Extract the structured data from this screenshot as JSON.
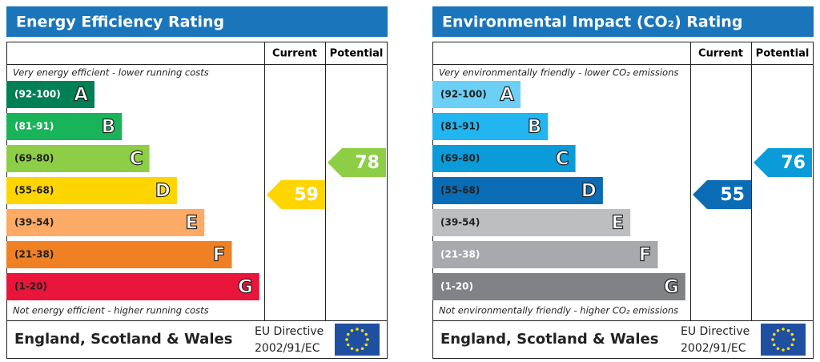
{
  "panels": [
    {
      "title": "Energy Efficiency Rating",
      "columns": [
        "Current",
        "Potential"
      ],
      "top_note": "Very energy efficient - lower running costs",
      "bottom_note": "Not energy efficient - higher running costs",
      "bands": [
        {
          "range": "(92-100)",
          "letter": "A",
          "color": "#008054",
          "text_color": "#ffffff"
        },
        {
          "range": "(81-91)",
          "letter": "B",
          "color": "#19b459",
          "text_color": "#ffffff"
        },
        {
          "range": "(69-80)",
          "letter": "C",
          "color": "#8dce46",
          "text_color": "#222222"
        },
        {
          "range": "(55-68)",
          "letter": "D",
          "color": "#ffd500",
          "text_color": "#222222"
        },
        {
          "range": "(39-54)",
          "letter": "E",
          "color": "#fcaa65",
          "text_color": "#222222"
        },
        {
          "range": "(21-38)",
          "letter": "F",
          "color": "#ef8023",
          "text_color": "#222222"
        },
        {
          "range": "(1-20)",
          "letter": "G",
          "color": "#e9153b",
          "text_color": "#222222"
        }
      ],
      "current": 59,
      "potential": 78,
      "footer": {
        "region": "England, Scotland & Wales",
        "directive": [
          "EU Directive",
          "2002/91/EC"
        ]
      }
    },
    {
      "title": "Environmental Impact (CO₂) Rating",
      "columns": [
        "Current",
        "Potential"
      ],
      "top_note": "Very environmentally friendly - lower CO₂ emissions",
      "bottom_note": "Not environmentally friendly - higher CO₂ emissions",
      "bands": [
        {
          "range": "(92-100)",
          "letter": "A",
          "color": "#6ccff6",
          "text_color": "#222222"
        },
        {
          "range": "(81-91)",
          "letter": "B",
          "color": "#22b5f0",
          "text_color": "#222222"
        },
        {
          "range": "(69-80)",
          "letter": "C",
          "color": "#0a9bd8",
          "text_color": "#222222"
        },
        {
          "range": "(55-68)",
          "letter": "D",
          "color": "#0a6cb5",
          "text_color": "#222222"
        },
        {
          "range": "(39-54)",
          "letter": "E",
          "color": "#bcbec0",
          "text_color": "#222222"
        },
        {
          "range": "(21-38)",
          "letter": "F",
          "color": "#a7a9ac",
          "text_color": "#ffffff"
        },
        {
          "range": "(1-20)",
          "letter": "G",
          "color": "#808285",
          "text_color": "#ffffff"
        }
      ],
      "current": 55,
      "potential": 76,
      "footer": {
        "region": "England, Scotland & Wales",
        "directive": [
          "EU Directive",
          "2002/91/EC"
        ]
      }
    }
  ]
}
